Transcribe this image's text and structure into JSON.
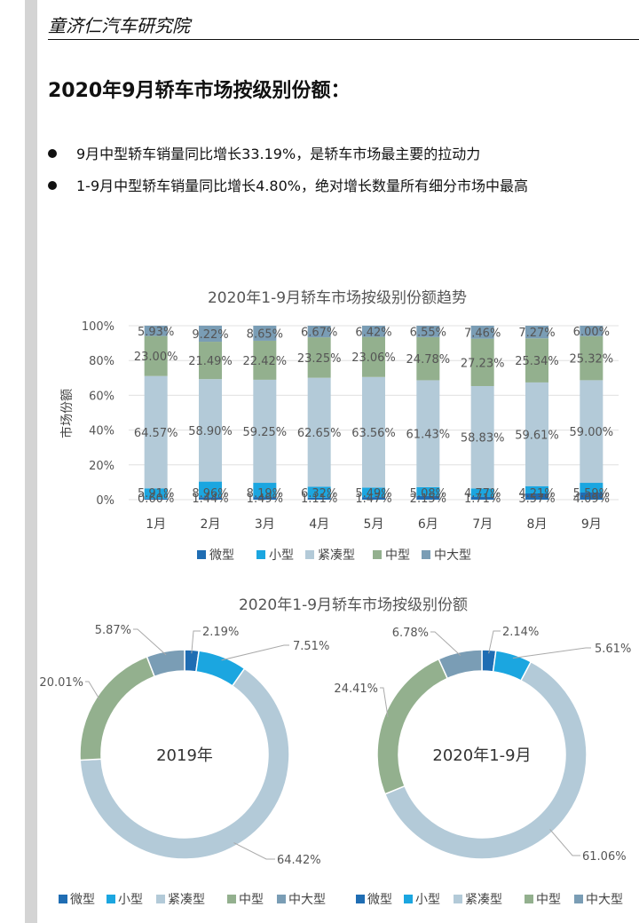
{
  "header": {
    "org": "童济仁汽车研究院"
  },
  "page": {
    "title": "2020年9月轿车市场按级别份额："
  },
  "bullets": [
    "9月中型轿车销量同比增长33.19%，是轿车市场最主要的拉动力",
    "1-9月中型轿车销量同比增长4.80%，绝对增长数量所有细分市场中最高"
  ],
  "colors": {
    "微型": "#1f6db3",
    "小型": "#1ba6e0",
    "紧凑型": "#b3cad8",
    "中型": "#93b08e",
    "中大型": "#7a9db5"
  },
  "chart_data": [
    {
      "type": "bar",
      "stacked": "percent",
      "title": "2020年1-9月轿车市场按级别份额趋势",
      "ylabel": "市场份额",
      "ylim": [
        0,
        100
      ],
      "yticks": [
        "0%",
        "20%",
        "40%",
        "60%",
        "80%",
        "100%"
      ],
      "grid": true,
      "legend": "bottom",
      "categories": [
        "1月",
        "2月",
        "3月",
        "4月",
        "5月",
        "6月",
        "7月",
        "8月",
        "9月"
      ],
      "series": [
        {
          "name": "微型",
          "values": [
            0.6,
            1.44,
            1.49,
            1.11,
            1.47,
            2.15,
            1.71,
            3.57,
            4.09
          ],
          "labels": [
            "0.60%",
            "1.44%",
            "1.49%",
            "1.11%",
            "1.47%",
            "2.15%",
            "1.71%",
            "3.57%",
            "4.09%"
          ]
        },
        {
          "name": "小型",
          "values": [
            5.91,
            8.96,
            8.19,
            6.32,
            5.49,
            5.08,
            4.77,
            4.21,
            5.59
          ],
          "labels": [
            "5.91%",
            "8.96%",
            "8.19%",
            "6.32%",
            "5.49%",
            "5.08%",
            "4.77%",
            "4.21%",
            "5.59%"
          ]
        },
        {
          "name": "紧凑型",
          "values": [
            64.57,
            58.9,
            59.25,
            62.65,
            63.56,
            61.43,
            58.83,
            59.61,
            59.0
          ],
          "labels": [
            "64.57%",
            "58.90%",
            "59.25%",
            "62.65%",
            "63.56%",
            "61.43%",
            "58.83%",
            "59.61%",
            "59.00%"
          ]
        },
        {
          "name": "中型",
          "values": [
            23.0,
            21.49,
            22.42,
            23.25,
            23.06,
            24.78,
            27.23,
            25.34,
            25.32
          ],
          "labels": [
            "23.00%",
            "21.49%",
            "22.42%",
            "23.25%",
            "23.06%",
            "24.78%",
            "27.23%",
            "25.34%",
            "25.32%"
          ]
        },
        {
          "name": "中大型",
          "values": [
            5.93,
            9.22,
            8.65,
            6.67,
            6.42,
            6.55,
            7.46,
            7.27,
            6.0
          ],
          "labels": [
            "5.93%",
            "9.22%",
            "8.65%",
            "6.67%",
            "6.42%",
            "6.55%",
            "7.46%",
            "7.27%",
            "6.00%"
          ]
        }
      ]
    },
    {
      "type": "pie",
      "donut": true,
      "title": "2020年1-9月轿车市场按级别份额",
      "center_label": "2019年",
      "legend": "bottom",
      "categories": [
        "微型",
        "小型",
        "紧凑型",
        "中型",
        "中大型"
      ],
      "values": [
        2.19,
        7.51,
        64.42,
        20.01,
        5.87
      ],
      "labels": [
        "2.19%",
        "7.51%",
        "64.42%",
        "20.01%",
        "5.87%"
      ]
    },
    {
      "type": "pie",
      "donut": true,
      "center_label": "2020年1-9月",
      "legend": "bottom",
      "categories": [
        "微型",
        "小型",
        "紧凑型",
        "中型",
        "中大型"
      ],
      "values": [
        2.14,
        5.61,
        61.06,
        24.41,
        6.78
      ],
      "labels": [
        "2.14%",
        "5.61%",
        "61.06%",
        "24.41%",
        "6.78%"
      ]
    }
  ]
}
